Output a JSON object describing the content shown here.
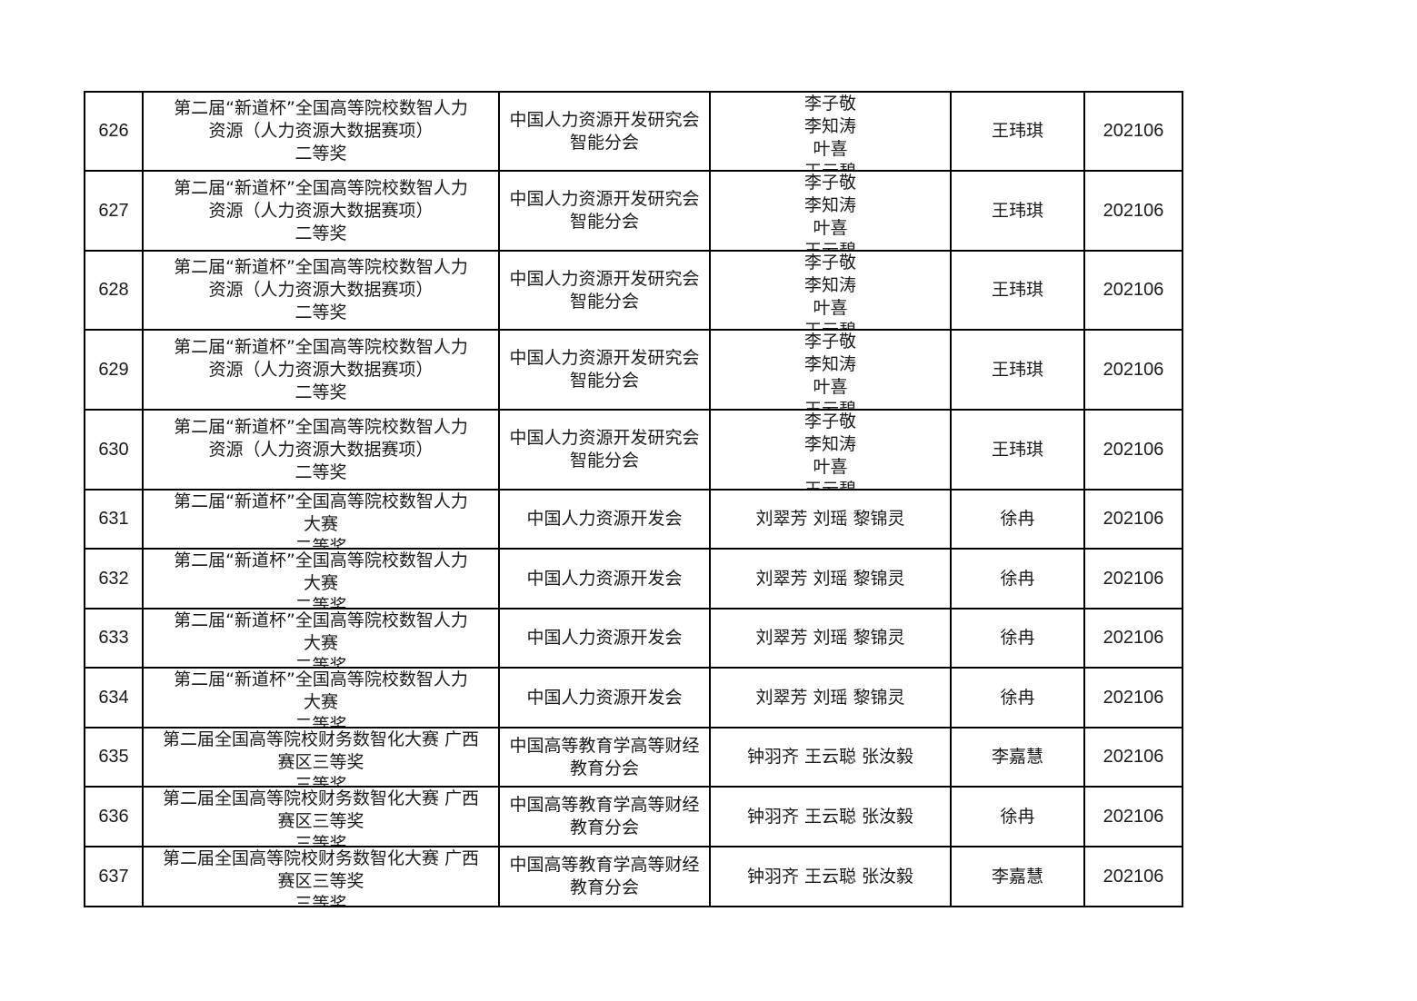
{
  "rows": [
    {
      "no": "626",
      "award": [
        "第二届“新道杯”全国高等院校数智人力",
        "资源（人力资源大数据赛项）",
        "二等奖"
      ],
      "org": [
        "中国人力资源开发研究会",
        "智能分会"
      ],
      "students": [
        "李子敬",
        "李知涛",
        "叶喜",
        "王云碧"
      ],
      "teacher": "王玮琪",
      "date": "202106"
    },
    {
      "no": "627",
      "award": [
        "第二届“新道杯”全国高等院校数智人力",
        "资源（人力资源大数据赛项）",
        "二等奖"
      ],
      "org": [
        "中国人力资源开发研究会",
        "智能分会"
      ],
      "students": [
        "李子敬",
        "李知涛",
        "叶喜",
        "王云碧"
      ],
      "teacher": "王玮琪",
      "date": "202106"
    },
    {
      "no": "628",
      "award": [
        "第二届“新道杯”全国高等院校数智人力",
        "资源（人力资源大数据赛项）",
        "二等奖"
      ],
      "org": [
        "中国人力资源开发研究会",
        "智能分会"
      ],
      "students": [
        "李子敬",
        "李知涛",
        "叶喜",
        "王云碧"
      ],
      "teacher": "王玮琪",
      "date": "202106"
    },
    {
      "no": "629",
      "award": [
        "第二届“新道杯”全国高等院校数智人力",
        "资源（人力资源大数据赛项）",
        "二等奖"
      ],
      "org": [
        "中国人力资源开发研究会",
        "智能分会"
      ],
      "students": [
        "李子敬",
        "李知涛",
        "叶喜",
        "王云碧"
      ],
      "teacher": "王玮琪",
      "date": "202106"
    },
    {
      "no": "630",
      "award": [
        "第二届“新道杯”全国高等院校数智人力",
        "资源（人力资源大数据赛项）",
        "二等奖"
      ],
      "org": [
        "中国人力资源开发研究会",
        "智能分会"
      ],
      "students": [
        "李子敬",
        "李知涛",
        "叶喜",
        "王云碧"
      ],
      "teacher": "王玮琪",
      "date": "202106"
    },
    {
      "no": "631",
      "award": [
        "第二届“新道杯”全国高等院校数智人力",
        "大赛",
        "二等奖"
      ],
      "org": [
        "中国人力资源开发会"
      ],
      "students": [
        "刘翠芳  刘瑶  黎锦灵"
      ],
      "teacher": "徐冉",
      "date": "202106"
    },
    {
      "no": "632",
      "award": [
        "第二届“新道杯”全国高等院校数智人力",
        "大赛",
        "二等奖"
      ],
      "org": [
        "中国人力资源开发会"
      ],
      "students": [
        "刘翠芳  刘瑶  黎锦灵"
      ],
      "teacher": "徐冉",
      "date": "202106"
    },
    {
      "no": "633",
      "award": [
        "第二届“新道杯”全国高等院校数智人力",
        "大赛",
        "二等奖"
      ],
      "org": [
        "中国人力资源开发会"
      ],
      "students": [
        "刘翠芳  刘瑶  黎锦灵"
      ],
      "teacher": "徐冉",
      "date": "202106"
    },
    {
      "no": "634",
      "award": [
        "第二届“新道杯”全国高等院校数智人力",
        "大赛",
        "二等奖"
      ],
      "org": [
        "中国人力资源开发会"
      ],
      "students": [
        "刘翠芳  刘瑶  黎锦灵"
      ],
      "teacher": "徐冉",
      "date": "202106"
    },
    {
      "no": "635",
      "award": [
        "第二届全国高等院校财务数智化大赛 广西",
        "赛区三等奖",
        "三等奖"
      ],
      "org": [
        "中国高等教育学高等财经",
        "教育分会"
      ],
      "students": [
        "钟羽齐  王云聪  张汝毅"
      ],
      "teacher": "李嘉慧",
      "date": "202106"
    },
    {
      "no": "636",
      "award": [
        "第二届全国高等院校财务数智化大赛 广西",
        "赛区三等奖",
        "三等奖"
      ],
      "org": [
        "中国高等教育学高等财经",
        "教育分会"
      ],
      "students": [
        "钟羽齐  王云聪  张汝毅"
      ],
      "teacher": "徐冉",
      "date": "202106"
    },
    {
      "no": "637",
      "award": [
        "第二届全国高等院校财务数智化大赛 广西",
        "赛区三等奖",
        "三等奖"
      ],
      "org": [
        "中国高等教育学高等财经",
        "教育分会"
      ],
      "students": [
        "钟羽齐  王云聪  张汝毅"
      ],
      "teacher": "李嘉慧",
      "date": "202106"
    }
  ]
}
